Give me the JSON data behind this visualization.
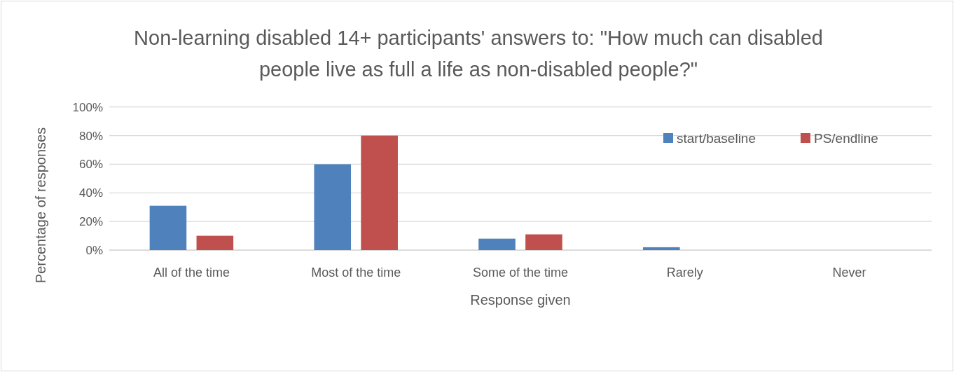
{
  "chart_data": {
    "type": "bar",
    "title": "Non-learning disabled 14+ participants' answers to: \"How much can disabled people live as full a life as non-disabled people?\"",
    "xlabel": "Response given",
    "ylabel": "Percentage of responses",
    "categories": [
      "All of the time",
      "Most of the time",
      "Some of the time",
      "Rarely",
      "Never"
    ],
    "series": [
      {
        "name": "start/baseline",
        "color": "#4f81bd",
        "values": [
          31,
          60,
          8,
          2,
          0
        ]
      },
      {
        "name": "PS/endline",
        "color": "#c0504d",
        "values": [
          10,
          80,
          11,
          0,
          0
        ]
      }
    ],
    "ylim": [
      0,
      100
    ],
    "yticks": [
      {
        "value": 0,
        "label": "0%"
      },
      {
        "value": 20,
        "label": "20%"
      },
      {
        "value": 40,
        "label": "40%"
      },
      {
        "value": 60,
        "label": "60%"
      },
      {
        "value": 80,
        "label": "80%"
      },
      {
        "value": 100,
        "label": "100%"
      }
    ],
    "grid": "y",
    "legend": "top right"
  }
}
